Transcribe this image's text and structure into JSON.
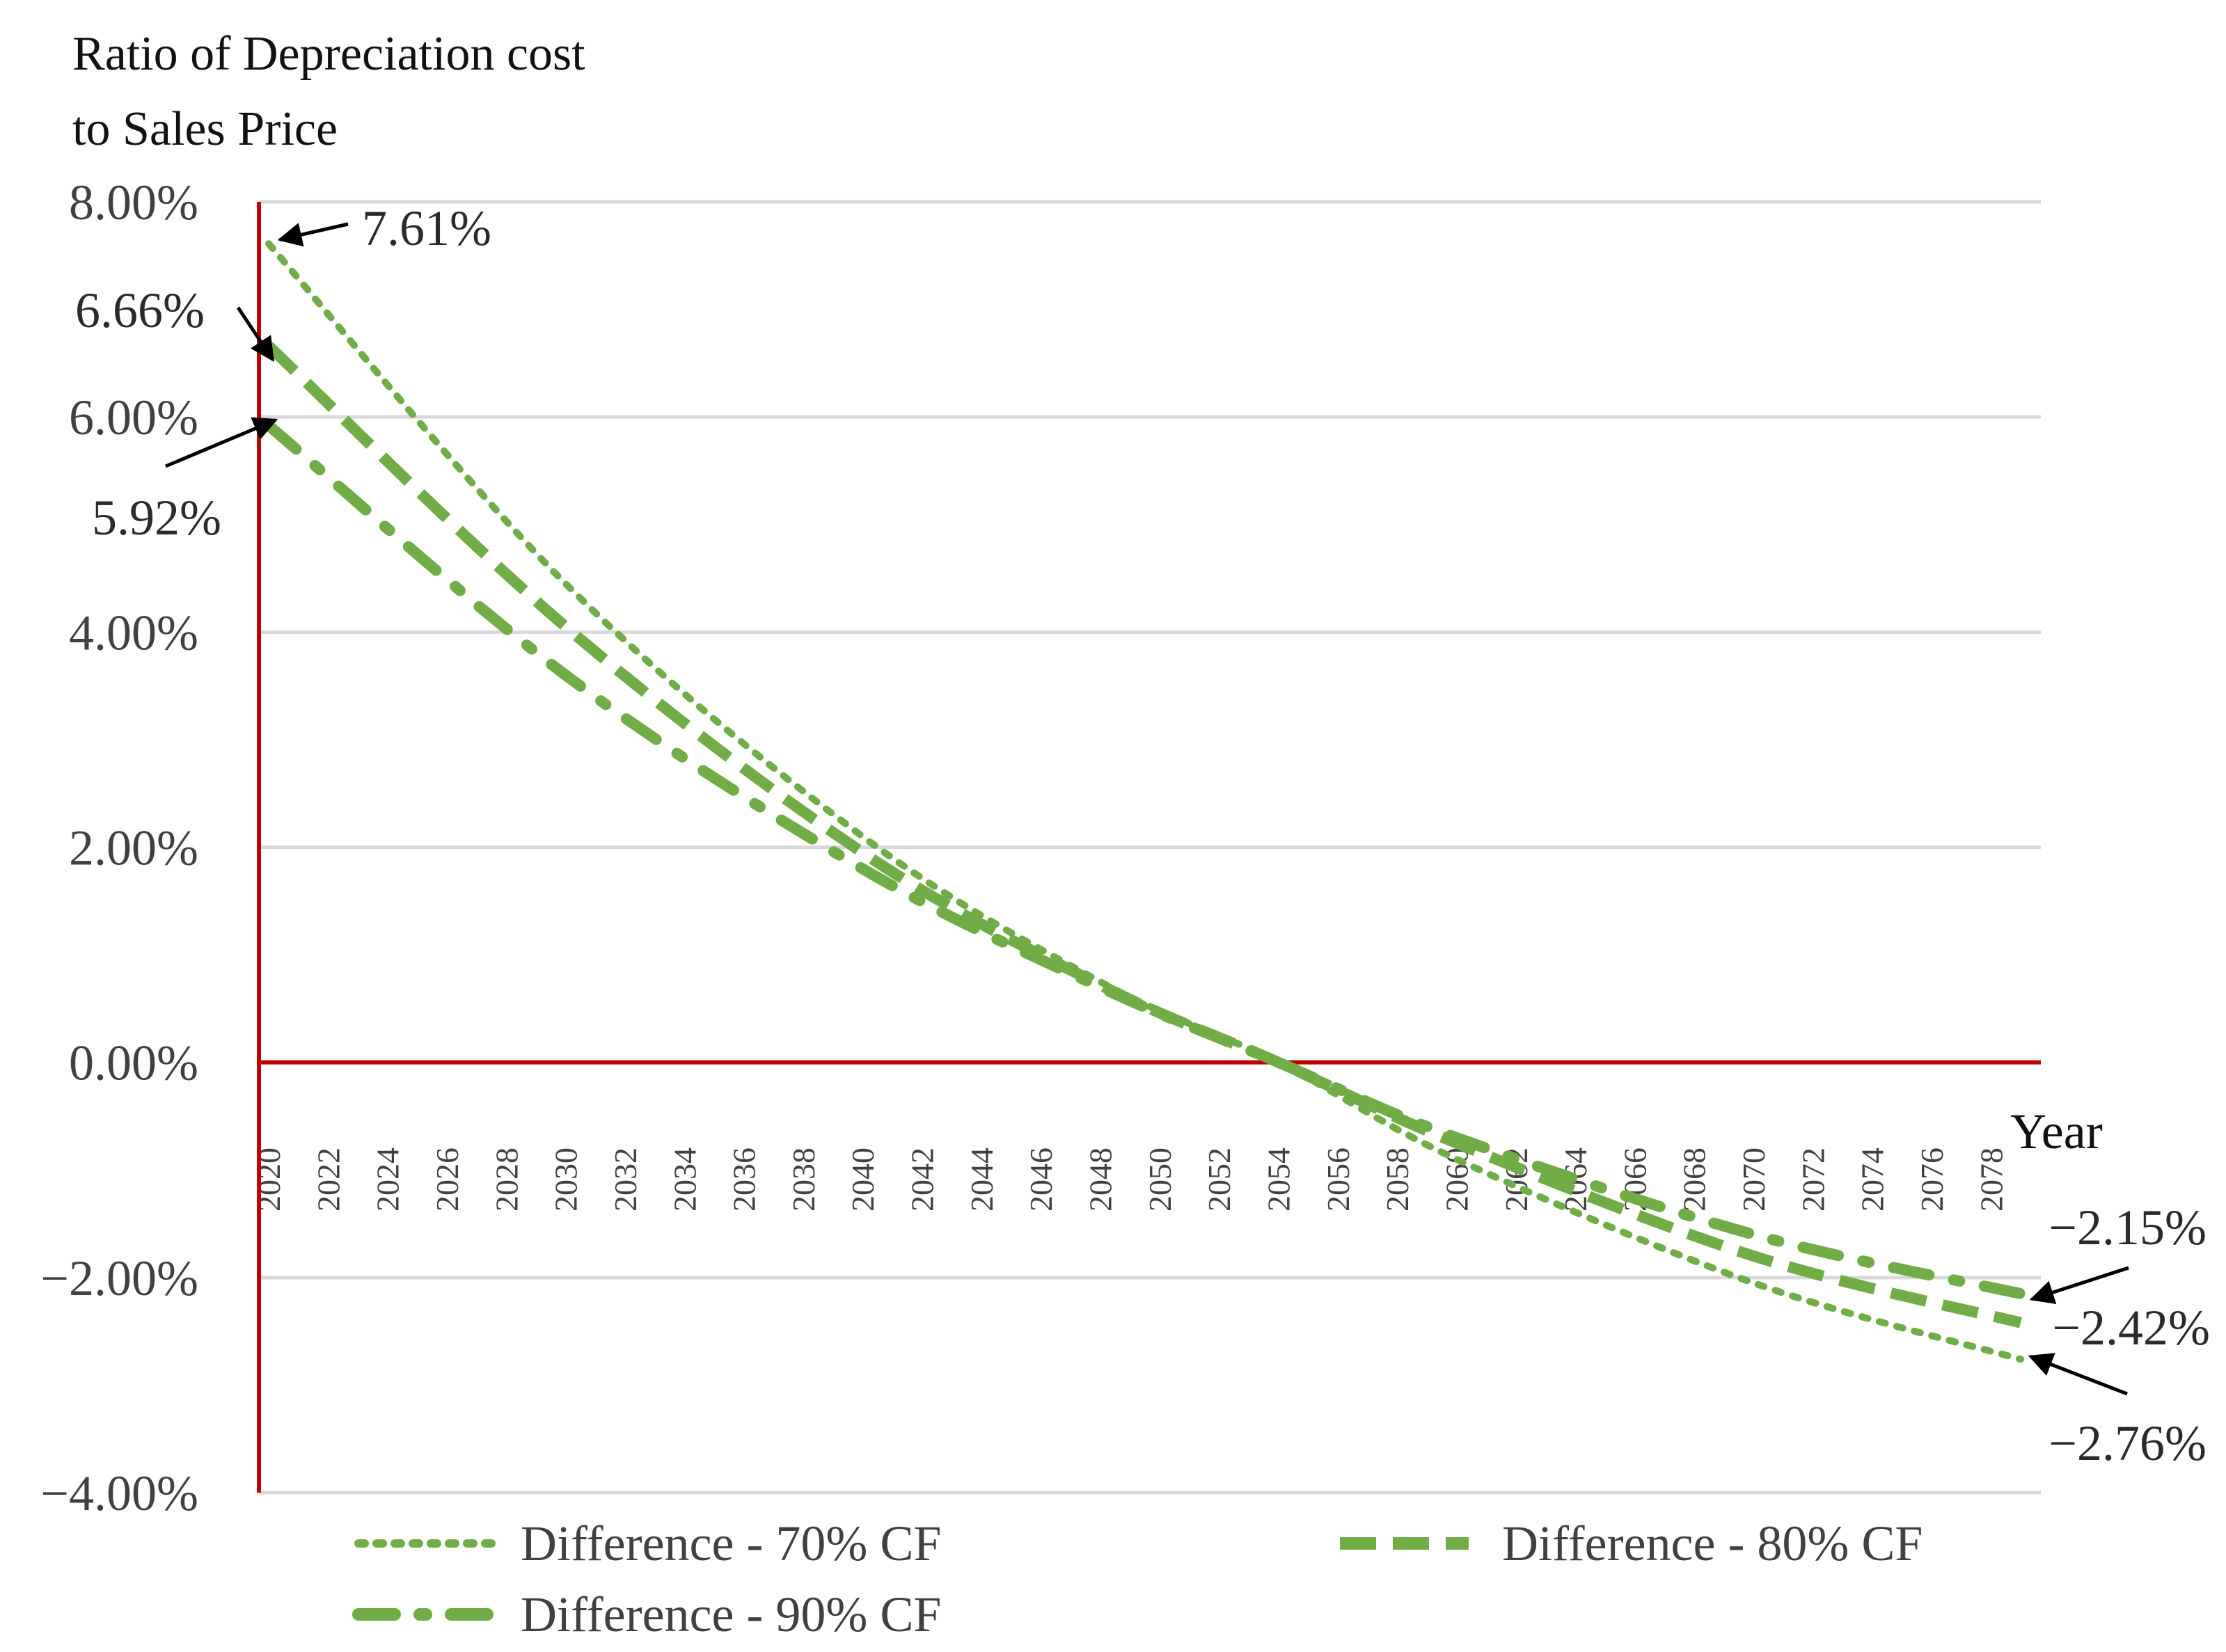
{
  "chart_data": {
    "type": "line",
    "ylabel_lines": [
      "Ratio of Depreciation cost",
      "to Sales Price"
    ],
    "xlabel": "Year",
    "ylim": [
      -4,
      8
    ],
    "yticks": [
      "8.00%",
      "6.00%",
      "4.00%",
      "2.00%",
      "0.00%",
      "−2.00%",
      "−4.00%"
    ],
    "ytick_values": [
      8,
      6,
      4,
      2,
      0,
      -2,
      -4
    ],
    "x_range": [
      2020,
      2079
    ],
    "xticks": [
      "2020",
      "2022",
      "2024",
      "2026",
      "2028",
      "2030",
      "2032",
      "2034",
      "2036",
      "2038",
      "2040",
      "2042",
      "2044",
      "2046",
      "2048",
      "2050",
      "2052",
      "2054",
      "2056",
      "2058",
      "2060",
      "2062",
      "2064",
      "2066",
      "2068",
      "2070",
      "2072",
      "2074",
      "2076",
      "2078"
    ],
    "series": [
      {
        "name": "Difference - 70% CF",
        "style": "dotted",
        "color": "#70ad47",
        "x": [
          2020,
          2030,
          2040,
          2048,
          2054,
          2060,
          2070,
          2079
        ],
        "values": [
          7.61,
          4.45,
          2.1,
          0.75,
          0.0,
          -0.9,
          -2.05,
          -2.76
        ]
      },
      {
        "name": "Difference - 80% CF",
        "style": "dashed",
        "color": "#70ad47",
        "x": [
          2020,
          2030,
          2040,
          2048,
          2054,
          2060,
          2070,
          2079
        ],
        "values": [
          6.66,
          4.05,
          1.95,
          0.72,
          0.0,
          -0.75,
          -1.8,
          -2.42
        ]
      },
      {
        "name": "Difference - 90% CF",
        "style": "dash-dot",
        "color": "#70ad47",
        "x": [
          2020,
          2030,
          2040,
          2048,
          2054,
          2060,
          2070,
          2079
        ],
        "values": [
          5.92,
          3.6,
          1.8,
          0.7,
          0.0,
          -0.7,
          -1.6,
          -2.15
        ]
      }
    ],
    "annotations": [
      {
        "text": "7.61%",
        "year": 2020,
        "value": 7.61
      },
      {
        "text": "6.66%",
        "year": 2020,
        "value": 6.66
      },
      {
        "text": "5.92%",
        "year": 2020,
        "value": 5.92
      },
      {
        "text": "−2.15%",
        "year": 2079,
        "value": -2.15
      },
      {
        "text": "−2.42%",
        "year": 2079,
        "value": -2.42
      },
      {
        "text": "−2.76%",
        "year": 2079,
        "value": -2.76
      }
    ],
    "legend": {
      "position": "bottom",
      "entries": [
        "Difference - 70% CF",
        "Difference - 80% CF",
        "Difference - 90% CF"
      ]
    },
    "grid": true,
    "colors": {
      "series": "#70ad47",
      "zero_axis": "#c00000",
      "grid": "#d9d9d9"
    }
  }
}
